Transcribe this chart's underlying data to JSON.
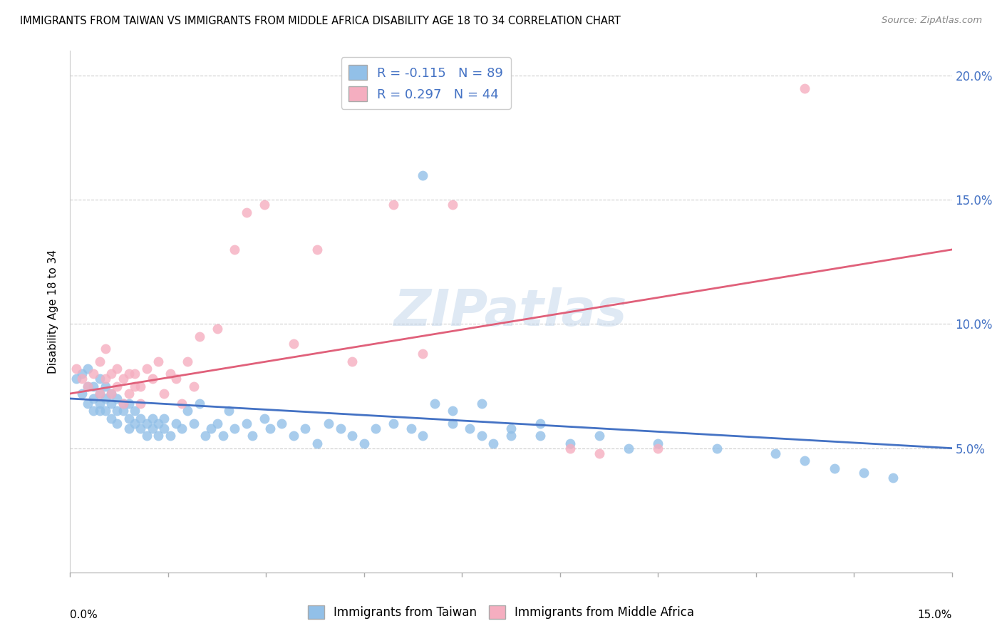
{
  "title": "IMMIGRANTS FROM TAIWAN VS IMMIGRANTS FROM MIDDLE AFRICA DISABILITY AGE 18 TO 34 CORRELATION CHART",
  "source": "Source: ZipAtlas.com",
  "ylabel": "Disability Age 18 to 34",
  "xlim": [
    0.0,
    0.15
  ],
  "ylim": [
    0.0,
    0.21
  ],
  "legend1_r": "-0.115",
  "legend1_n": "89",
  "legend2_r": "0.297",
  "legend2_n": "44",
  "blue_color": "#92c0e8",
  "pink_color": "#f5aec0",
  "blue_line_color": "#4472c4",
  "pink_line_color": "#e0607a",
  "taiwan_scatter_x": [
    0.001,
    0.002,
    0.002,
    0.003,
    0.003,
    0.003,
    0.004,
    0.004,
    0.004,
    0.005,
    0.005,
    0.005,
    0.005,
    0.006,
    0.006,
    0.006,
    0.007,
    0.007,
    0.007,
    0.008,
    0.008,
    0.008,
    0.009,
    0.009,
    0.01,
    0.01,
    0.01,
    0.011,
    0.011,
    0.012,
    0.012,
    0.013,
    0.013,
    0.014,
    0.014,
    0.015,
    0.015,
    0.016,
    0.016,
    0.017,
    0.018,
    0.019,
    0.02,
    0.021,
    0.022,
    0.023,
    0.024,
    0.025,
    0.026,
    0.027,
    0.028,
    0.03,
    0.031,
    0.033,
    0.034,
    0.036,
    0.038,
    0.04,
    0.042,
    0.044,
    0.046,
    0.048,
    0.05,
    0.052,
    0.055,
    0.058,
    0.06,
    0.062,
    0.065,
    0.068,
    0.07,
    0.072,
    0.075,
    0.08,
    0.085,
    0.09,
    0.095,
    0.1,
    0.11,
    0.12,
    0.125,
    0.13,
    0.135,
    0.14,
    0.06,
    0.065,
    0.07,
    0.075,
    0.08
  ],
  "taiwan_scatter_y": [
    0.078,
    0.08,
    0.072,
    0.075,
    0.068,
    0.082,
    0.07,
    0.065,
    0.075,
    0.072,
    0.068,
    0.065,
    0.078,
    0.07,
    0.065,
    0.075,
    0.068,
    0.062,
    0.072,
    0.065,
    0.06,
    0.07,
    0.065,
    0.068,
    0.062,
    0.058,
    0.068,
    0.06,
    0.065,
    0.058,
    0.062,
    0.06,
    0.055,
    0.062,
    0.058,
    0.06,
    0.055,
    0.058,
    0.062,
    0.055,
    0.06,
    0.058,
    0.065,
    0.06,
    0.068,
    0.055,
    0.058,
    0.06,
    0.055,
    0.065,
    0.058,
    0.06,
    0.055,
    0.062,
    0.058,
    0.06,
    0.055,
    0.058,
    0.052,
    0.06,
    0.058,
    0.055,
    0.052,
    0.058,
    0.06,
    0.058,
    0.055,
    0.068,
    0.06,
    0.058,
    0.055,
    0.052,
    0.058,
    0.055,
    0.052,
    0.055,
    0.05,
    0.052,
    0.05,
    0.048,
    0.045,
    0.042,
    0.04,
    0.038,
    0.16,
    0.065,
    0.068,
    0.055,
    0.06
  ],
  "africa_scatter_x": [
    0.001,
    0.002,
    0.003,
    0.004,
    0.005,
    0.005,
    0.006,
    0.006,
    0.007,
    0.007,
    0.008,
    0.008,
    0.009,
    0.009,
    0.01,
    0.01,
    0.011,
    0.011,
    0.012,
    0.012,
    0.013,
    0.014,
    0.015,
    0.016,
    0.017,
    0.018,
    0.019,
    0.02,
    0.021,
    0.022,
    0.025,
    0.028,
    0.03,
    0.033,
    0.038,
    0.042,
    0.048,
    0.055,
    0.06,
    0.065,
    0.085,
    0.09,
    0.1,
    0.125
  ],
  "africa_scatter_y": [
    0.082,
    0.078,
    0.075,
    0.08,
    0.072,
    0.085,
    0.078,
    0.09,
    0.08,
    0.072,
    0.075,
    0.082,
    0.078,
    0.068,
    0.08,
    0.072,
    0.075,
    0.08,
    0.068,
    0.075,
    0.082,
    0.078,
    0.085,
    0.072,
    0.08,
    0.078,
    0.068,
    0.085,
    0.075,
    0.095,
    0.098,
    0.13,
    0.145,
    0.148,
    0.092,
    0.13,
    0.085,
    0.148,
    0.088,
    0.148,
    0.05,
    0.048,
    0.05,
    0.195
  ],
  "taiwan_line_x": [
    0.0,
    0.15
  ],
  "taiwan_line_y": [
    0.07,
    0.05
  ],
  "africa_line_x": [
    0.0,
    0.15
  ],
  "africa_line_y": [
    0.072,
    0.13
  ],
  "watermark": "ZIPatlas",
  "legend_taiwan_label": "Immigrants from Taiwan",
  "legend_africa_label": "Immigrants from Middle Africa",
  "yticks": [
    0.05,
    0.1,
    0.15,
    0.2
  ],
  "ytick_labels": [
    "5.0%",
    "10.0%",
    "15.0%",
    "20.0%"
  ]
}
